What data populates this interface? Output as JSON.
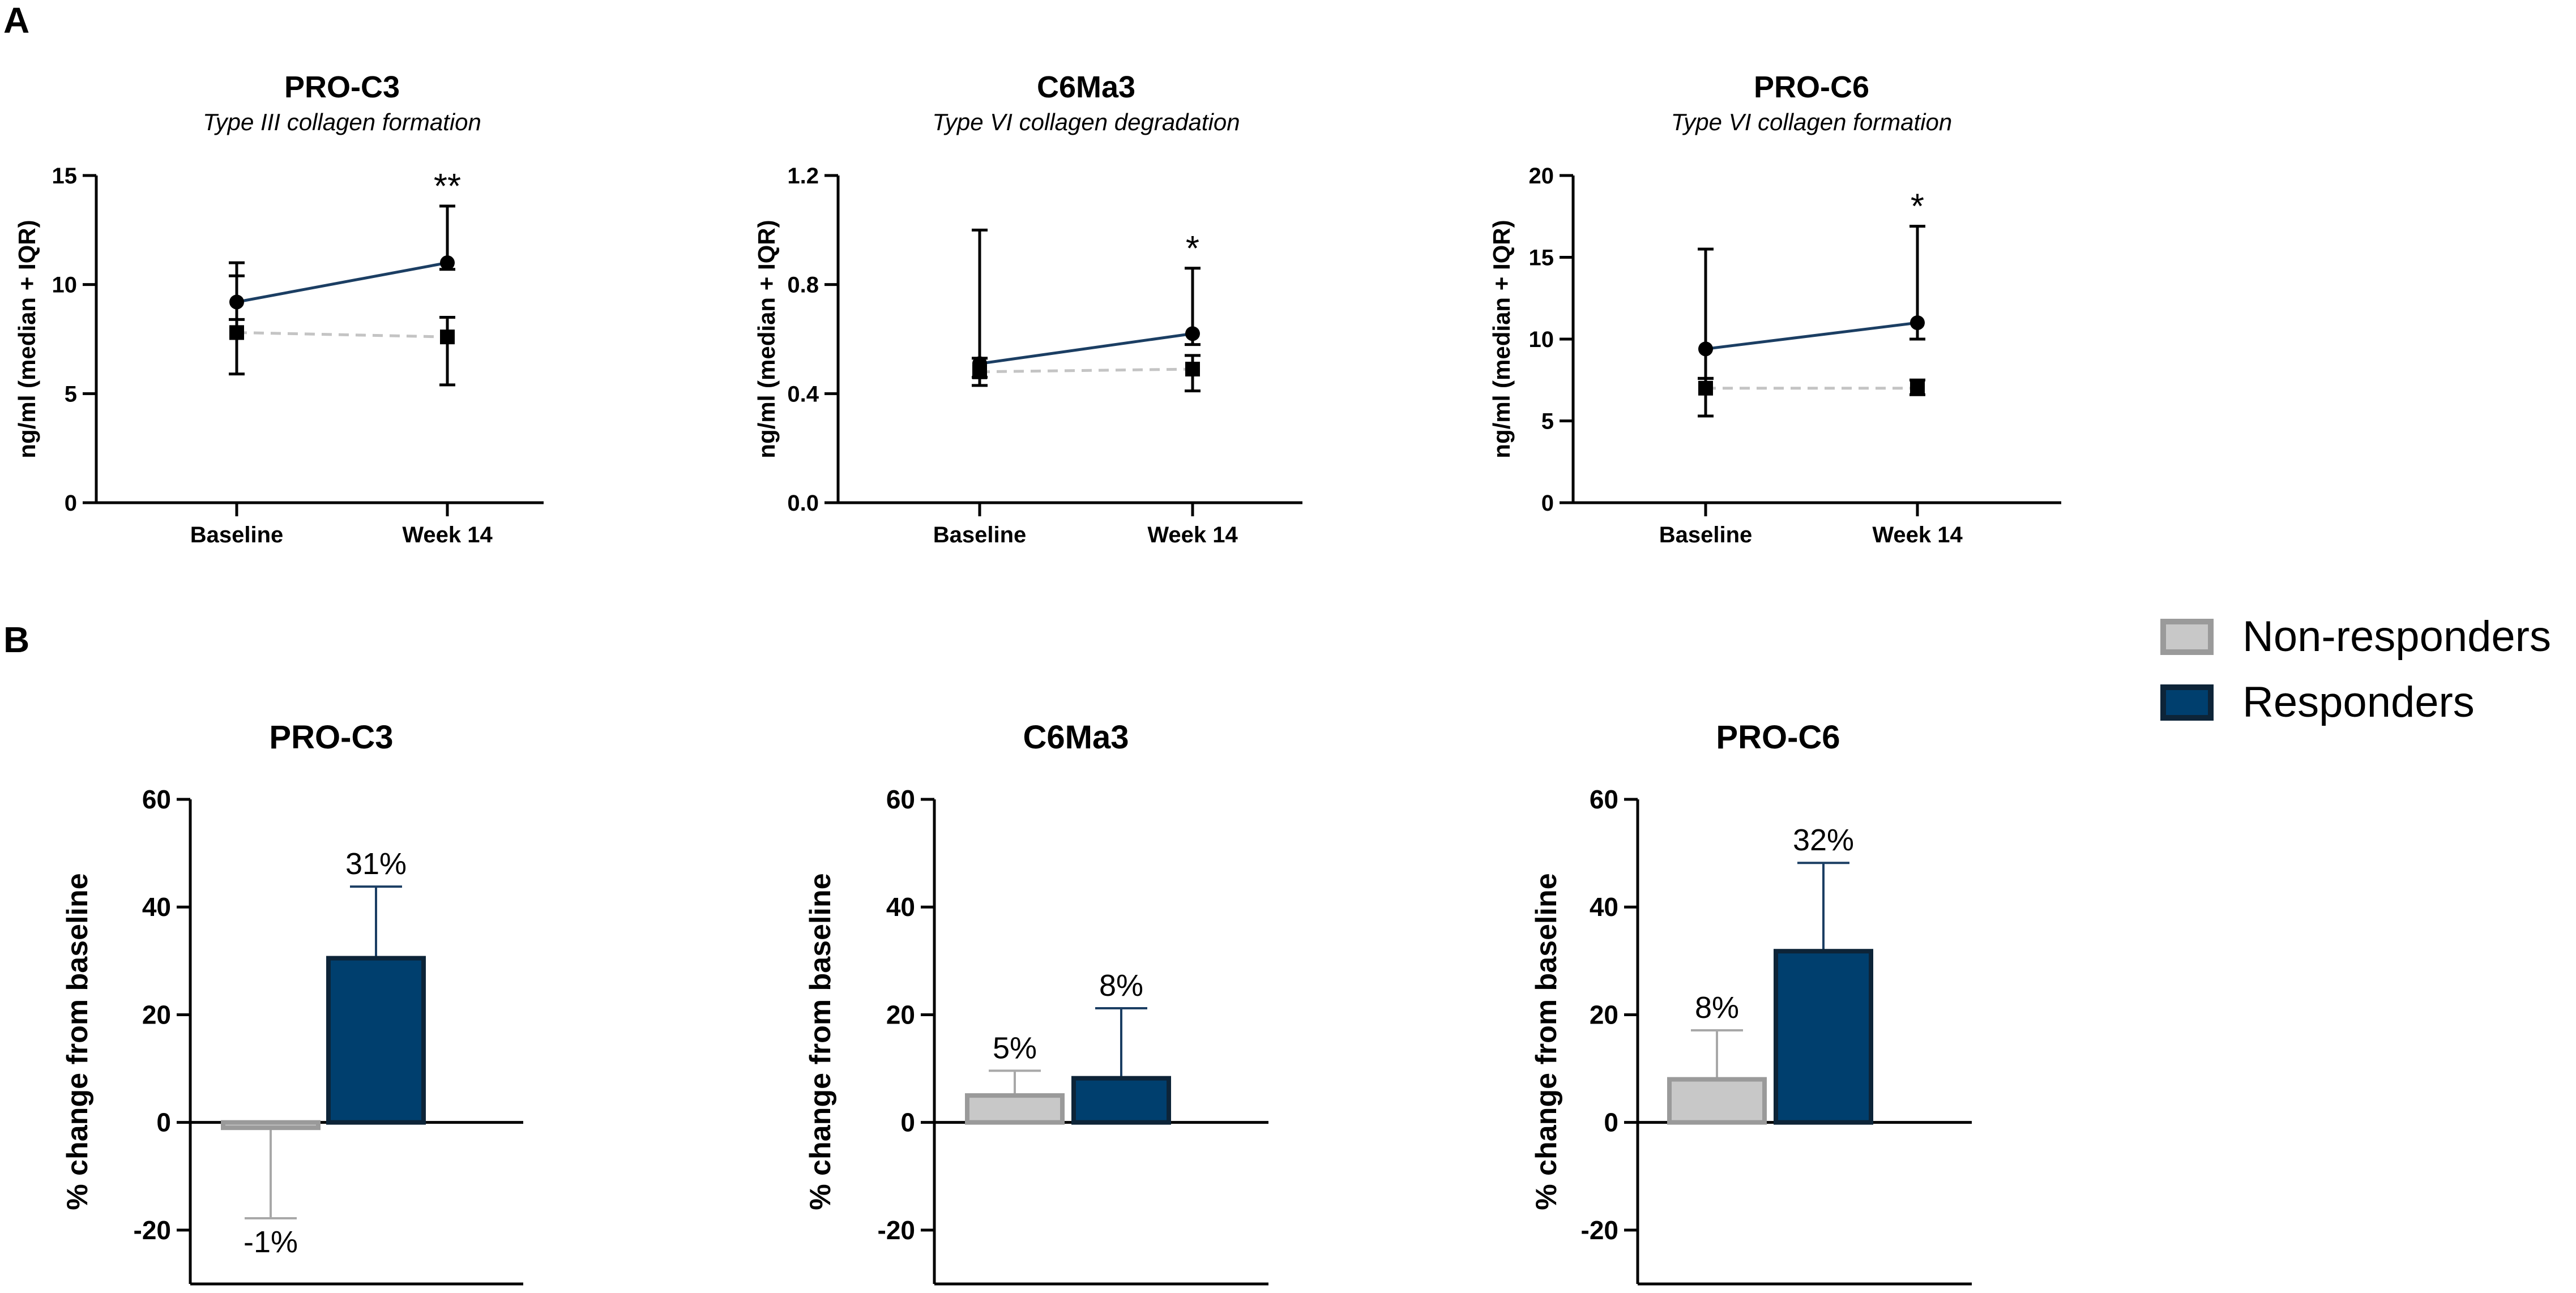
{
  "panel_labels": [
    "A",
    "B"
  ],
  "legend": {
    "items": [
      {
        "name": "Non-responders",
        "color": "#c8c8c8",
        "stroke": "#9a9a9a"
      },
      {
        "name": "Responders",
        "color": "#003f6e",
        "stroke": "#0d2438"
      }
    ]
  },
  "colors": {
    "responder_line": "#1b3e63",
    "nonresponder_line": "#c4c4c4",
    "axis": "#000000"
  },
  "chart_data": [
    {
      "panel": "A",
      "type": "line",
      "title": "PRO-C3",
      "subtitle": "Type  III collagen formation",
      "ylabel": "ng/ml (median + IQR)",
      "categories": [
        "Baseline",
        "Week 14"
      ],
      "ylim": [
        0,
        15
      ],
      "yticks": [
        0,
        5,
        10,
        15
      ],
      "series": [
        {
          "name": "Responders",
          "marker": "circle",
          "values": [
            9.2,
            11.0
          ],
          "err_low": [
            8.4,
            10.7
          ],
          "err_high": [
            11.0,
            13.6
          ]
        },
        {
          "name": "Non-responders",
          "marker": "square",
          "values": [
            7.8,
            7.6
          ],
          "err_low": [
            5.9,
            5.4
          ],
          "err_high": [
            10.4,
            8.5
          ]
        }
      ],
      "significance": [
        "",
        "**"
      ]
    },
    {
      "panel": "A",
      "type": "line",
      "title": "C6Ma3",
      "subtitle": "Type VI collagen degradation",
      "ylabel": "ng/ml (median + IQR)",
      "categories": [
        "Baseline",
        "Week 14"
      ],
      "ylim": [
        0,
        1.2
      ],
      "yticks": [
        "0.0",
        "0.4",
        "0.8",
        "1.2"
      ],
      "series": [
        {
          "name": "Responders",
          "marker": "circle",
          "values": [
            0.51,
            0.62
          ],
          "err_low": [
            0.46,
            0.58
          ],
          "err_high": [
            1.0,
            0.86
          ]
        },
        {
          "name": "Non-responders",
          "marker": "square",
          "values": [
            0.48,
            0.49
          ],
          "err_low": [
            0.43,
            0.41
          ],
          "err_high": [
            0.53,
            0.54
          ]
        }
      ],
      "significance": [
        "",
        "*"
      ]
    },
    {
      "panel": "A",
      "type": "line",
      "title": "PRO-C6",
      "subtitle": "Type VI collagen formation",
      "ylabel": "ng/ml (median + IQR)",
      "categories": [
        "Baseline",
        "Week 14"
      ],
      "ylim": [
        0,
        20
      ],
      "yticks": [
        0,
        5,
        10,
        15,
        20
      ],
      "series": [
        {
          "name": "Responders",
          "marker": "circle",
          "values": [
            9.4,
            11.0
          ],
          "err_low": [
            7.6,
            10.0
          ],
          "err_high": [
            15.5,
            16.9
          ]
        },
        {
          "name": "Non-responders",
          "marker": "square",
          "values": [
            7.0,
            7.0
          ],
          "err_low": [
            5.3,
            6.6
          ],
          "err_high": [
            7.6,
            7.5
          ]
        }
      ],
      "significance": [
        "",
        "*"
      ]
    },
    {
      "panel": "B",
      "type": "bar",
      "title": "PRO-C3",
      "ylabel": "% change from baseline",
      "categories": [
        "Non-responders",
        "Responders"
      ],
      "values": [
        -1,
        30.5
      ],
      "err_high": [
        -17.8,
        43.8
      ],
      "labels": [
        "-1%",
        "31%"
      ],
      "ylim": [
        -30,
        60
      ],
      "yticks": [
        -20,
        0,
        20,
        40,
        60
      ]
    },
    {
      "panel": "B",
      "type": "bar",
      "title": "C6Ma3",
      "ylabel": "% change from baseline",
      "categories": [
        "Non-responders",
        "Responders"
      ],
      "values": [
        5,
        8.2
      ],
      "err_high": [
        9.6,
        21.2
      ],
      "labels": [
        "5%",
        "8%"
      ],
      "ylim": [
        -30,
        60
      ],
      "yticks": [
        -20,
        0,
        20,
        40,
        60
      ]
    },
    {
      "panel": "B",
      "type": "bar",
      "title": "PRO-C6",
      "ylabel": "% change from baseline",
      "categories": [
        "Non-responders",
        "Responders"
      ],
      "values": [
        8,
        31.8
      ],
      "err_high": [
        17.1,
        48.2
      ],
      "labels": [
        "8%",
        "32%"
      ],
      "ylim": [
        -30,
        60
      ],
      "yticks": [
        -20,
        0,
        20,
        40,
        60
      ]
    }
  ]
}
